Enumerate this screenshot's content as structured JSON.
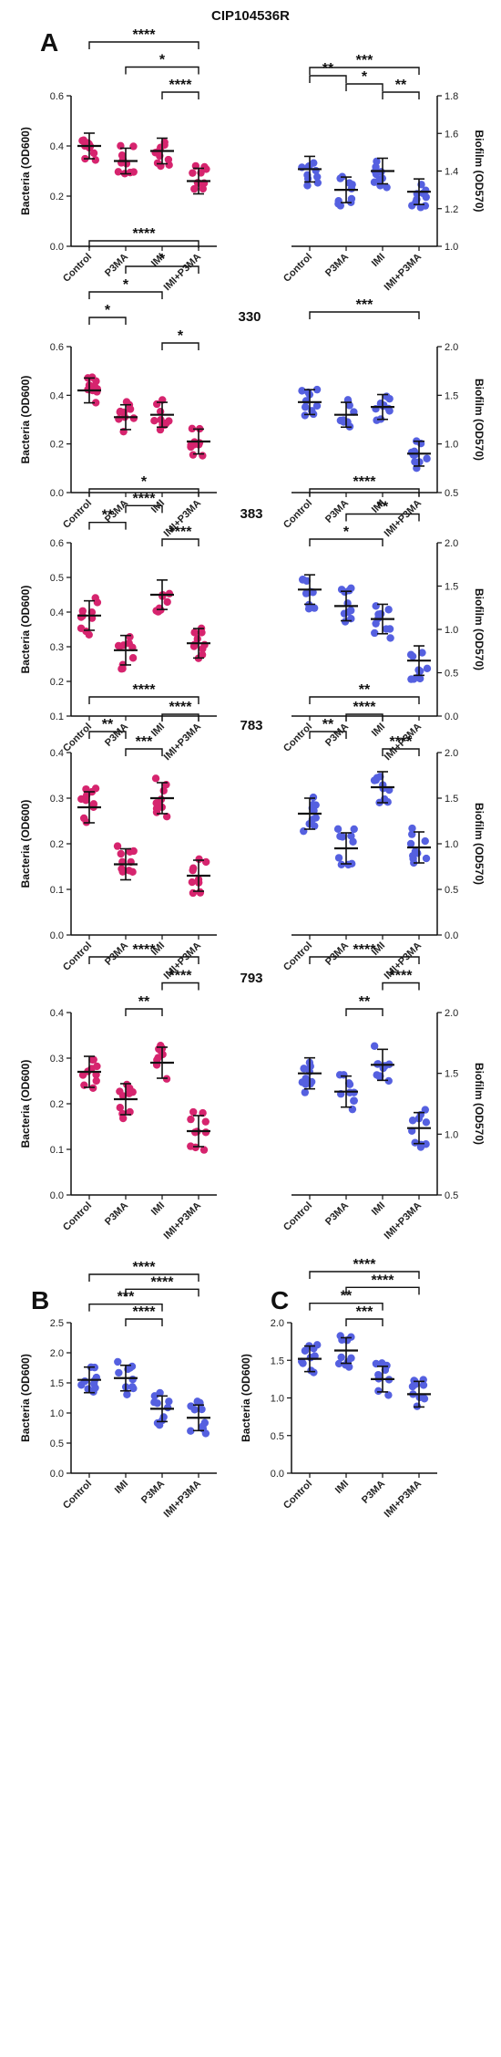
{
  "figure": {
    "title": "CIP104536R",
    "colors": {
      "bacteria": "#d6246e",
      "biofilm": "#5560e0",
      "axis": "#111111"
    }
  },
  "chart_data": [
    {
      "type": "scatter",
      "panel_label": "A",
      "row_title": "",
      "ylabel": "Bacteria (OD600)",
      "ylim": [
        0,
        0.6
      ],
      "yticks": [
        0,
        0.2,
        0.4,
        0.6
      ],
      "axis_side": "left",
      "categories": [
        "Control",
        "P3MA",
        "IMI",
        "IMI+P3MA"
      ],
      "color": "bacteria",
      "series": [
        {
          "values": [
            0.4,
            0.34,
            0.38,
            0.26
          ]
        }
      ],
      "sig": [
        {
          "from": 0,
          "to": 3,
          "label": "****"
        },
        {
          "from": 1,
          "to": 3,
          "label": "*"
        },
        {
          "from": 2,
          "to": 3,
          "label": "****"
        }
      ]
    },
    {
      "type": "scatter",
      "panel_label": "",
      "row_title": "",
      "ylabel": "Biofilm (OD570)",
      "ylim": [
        1.0,
        1.8
      ],
      "yticks": [
        1.0,
        1.2,
        1.4,
        1.6,
        1.8
      ],
      "axis_side": "right",
      "categories": [
        "Control",
        "P3MA",
        "IMI",
        "IMI+P3MA"
      ],
      "color": "biofilm",
      "series": [
        {
          "values": [
            1.41,
            1.3,
            1.4,
            1.29
          ]
        }
      ],
      "sig": [
        {
          "from": 0,
          "to": 3,
          "label": "***"
        },
        {
          "from": 0,
          "to": 1,
          "label": "**"
        },
        {
          "from": 1,
          "to": 2,
          "label": "*"
        },
        {
          "from": 2,
          "to": 3,
          "label": "**"
        }
      ]
    },
    {
      "type": "scatter",
      "panel_label": "",
      "row_title": "330",
      "ylabel": "Bacteria (OD600)",
      "ylim": [
        0,
        0.6
      ],
      "yticks": [
        0,
        0.2,
        0.4,
        0.6
      ],
      "axis_side": "left",
      "categories": [
        "Control",
        "P3MA",
        "IMI",
        "IMI+P3MA"
      ],
      "color": "bacteria",
      "series": [
        {
          "values": [
            0.42,
            0.31,
            0.32,
            0.21
          ]
        }
      ],
      "sig": [
        {
          "from": 0,
          "to": 3,
          "label": "****"
        },
        {
          "from": 1,
          "to": 3,
          "label": "*"
        },
        {
          "from": 0,
          "to": 2,
          "label": "*"
        },
        {
          "from": 0,
          "to": 1,
          "label": "*"
        },
        {
          "from": 2,
          "to": 3,
          "label": "*"
        }
      ]
    },
    {
      "type": "scatter",
      "panel_label": "",
      "row_title": "",
      "ylabel": "Biofilm (OD570)",
      "ylim": [
        0.5,
        2.0
      ],
      "yticks": [
        0.5,
        1.0,
        1.5,
        2.0
      ],
      "axis_side": "right",
      "categories": [
        "Control",
        "P3MA",
        "IMI",
        "IMI+P3MA"
      ],
      "color": "biofilm",
      "series": [
        {
          "values": [
            1.43,
            1.3,
            1.38,
            0.9
          ]
        }
      ],
      "sig": [
        {
          "from": 0,
          "to": 3,
          "label": "***"
        }
      ]
    },
    {
      "type": "scatter",
      "panel_label": "",
      "row_title": "383",
      "ylabel": "Bacteria (OD600)",
      "ylim": [
        0.1,
        0.6
      ],
      "yticks": [
        0.1,
        0.2,
        0.3,
        0.4,
        0.5,
        0.6
      ],
      "axis_side": "left",
      "categories": [
        "Control",
        "P3MA",
        "IMI",
        "IMI+P3MA"
      ],
      "color": "bacteria",
      "series": [
        {
          "values": [
            0.39,
            0.29,
            0.45,
            0.31
          ]
        }
      ],
      "sig": [
        {
          "from": 0,
          "to": 3,
          "label": "*"
        },
        {
          "from": 1,
          "to": 2,
          "label": "****"
        },
        {
          "from": 0,
          "to": 1,
          "label": "**"
        },
        {
          "from": 2,
          "to": 3,
          "label": "****"
        }
      ]
    },
    {
      "type": "scatter",
      "panel_label": "",
      "row_title": "",
      "ylabel": "Biofilm (OD570)",
      "ylim": [
        0.0,
        2.0
      ],
      "yticks": [
        0.0,
        0.5,
        1.0,
        1.5,
        2.0
      ],
      "axis_side": "right",
      "categories": [
        "Control",
        "P3MA",
        "IMI",
        "IMI+P3MA"
      ],
      "color": "biofilm",
      "series": [
        {
          "values": [
            1.46,
            1.27,
            1.12,
            0.64
          ]
        }
      ],
      "sig": [
        {
          "from": 0,
          "to": 3,
          "label": "****"
        },
        {
          "from": 1,
          "to": 3,
          "label": "**"
        },
        {
          "from": 0,
          "to": 2,
          "label": "*"
        }
      ]
    },
    {
      "type": "scatter",
      "panel_label": "",
      "row_title": "783",
      "ylabel": "Bacteria (OD600)",
      "ylim": [
        0,
        0.4
      ],
      "yticks": [
        0.0,
        0.1,
        0.2,
        0.3,
        0.4
      ],
      "axis_side": "left",
      "categories": [
        "Control",
        "P3MA",
        "IMI",
        "IMI+P3MA"
      ],
      "color": "bacteria",
      "series": [
        {
          "values": [
            0.28,
            0.155,
            0.3,
            0.13
          ]
        }
      ],
      "sig": [
        {
          "from": 0,
          "to": 3,
          "label": "****"
        },
        {
          "from": 2,
          "to": 3,
          "label": "****"
        },
        {
          "from": 0,
          "to": 1,
          "label": "**"
        },
        {
          "from": 1,
          "to": 2,
          "label": "***"
        }
      ]
    },
    {
      "type": "scatter",
      "panel_label": "",
      "row_title": "",
      "ylabel": "Biofilm (OD570)",
      "ylim": [
        0.0,
        2.0
      ],
      "yticks": [
        0.0,
        0.5,
        1.0,
        1.5,
        2.0
      ],
      "axis_side": "right",
      "categories": [
        "Control",
        "P3MA",
        "IMI",
        "IMI+P3MA"
      ],
      "color": "biofilm",
      "series": [
        {
          "values": [
            1.33,
            0.95,
            1.62,
            0.96
          ]
        }
      ],
      "sig": [
        {
          "from": 0,
          "to": 3,
          "label": "**"
        },
        {
          "from": 1,
          "to": 2,
          "label": "****"
        },
        {
          "from": 0,
          "to": 1,
          "label": "**"
        },
        {
          "from": 2,
          "to": 3,
          "label": "****"
        }
      ]
    },
    {
      "type": "scatter",
      "panel_label": "",
      "row_title": "793",
      "ylabel": "Bacteria (OD600)",
      "ylim": [
        0,
        0.4
      ],
      "yticks": [
        0.0,
        0.1,
        0.2,
        0.3,
        0.4
      ],
      "axis_side": "left",
      "categories": [
        "Control",
        "P3MA",
        "IMI",
        "IMI+P3MA"
      ],
      "color": "bacteria",
      "series": [
        {
          "values": [
            0.27,
            0.21,
            0.29,
            0.14
          ]
        }
      ],
      "sig": [
        {
          "from": 0,
          "to": 3,
          "label": "****"
        },
        {
          "from": 2,
          "to": 3,
          "label": "****"
        },
        {
          "from": 1,
          "to": 2,
          "label": "**"
        }
      ]
    },
    {
      "type": "scatter",
      "panel_label": "",
      "row_title": "",
      "ylabel": "Biofilm (OD570)",
      "ylim": [
        0.5,
        2.0
      ],
      "yticks": [
        0.5,
        1.0,
        1.5,
        2.0
      ],
      "axis_side": "right",
      "categories": [
        "Control",
        "P3MA",
        "IMI",
        "IMI+P3MA"
      ],
      "color": "biofilm",
      "series": [
        {
          "values": [
            1.5,
            1.35,
            1.57,
            1.05
          ]
        }
      ],
      "sig": [
        {
          "from": 0,
          "to": 3,
          "label": "****"
        },
        {
          "from": 2,
          "to": 3,
          "label": "****"
        },
        {
          "from": 1,
          "to": 2,
          "label": "**"
        }
      ]
    },
    {
      "type": "scatter",
      "panel_label": "B",
      "row_title": "",
      "ylabel": "Bacteria (OD600)",
      "ylim": [
        0,
        2.5
      ],
      "yticks": [
        0.0,
        0.5,
        1.0,
        1.5,
        2.0,
        2.5
      ],
      "axis_side": "left",
      "categories": [
        "Control",
        "IMI",
        "P3MA",
        "IMI+P3MA"
      ],
      "color": "biofilm",
      "series": [
        {
          "values": [
            1.55,
            1.58,
            1.07,
            0.92
          ]
        }
      ],
      "sig": [
        {
          "from": 0,
          "to": 3,
          "label": "****"
        },
        {
          "from": 1,
          "to": 3,
          "label": "****"
        },
        {
          "from": 0,
          "to": 2,
          "label": "***"
        },
        {
          "from": 1,
          "to": 2,
          "label": "****"
        }
      ]
    },
    {
      "type": "scatter",
      "panel_label": "C",
      "row_title": "",
      "ylabel": "Bacteria (OD600)",
      "ylim": [
        0,
        2.0
      ],
      "yticks": [
        0.0,
        0.5,
        1.0,
        1.5,
        2.0
      ],
      "axis_side": "left",
      "categories": [
        "Control",
        "IMI",
        "P3MA",
        "IMI+P3MA"
      ],
      "color": "biofilm",
      "series": [
        {
          "values": [
            1.52,
            1.63,
            1.25,
            1.05
          ]
        }
      ],
      "sig": [
        {
          "from": 0,
          "to": 3,
          "label": "****"
        },
        {
          "from": 1,
          "to": 3,
          "label": "****"
        },
        {
          "from": 0,
          "to": 2,
          "label": "**"
        },
        {
          "from": 1,
          "to": 2,
          "label": "***"
        }
      ]
    }
  ]
}
